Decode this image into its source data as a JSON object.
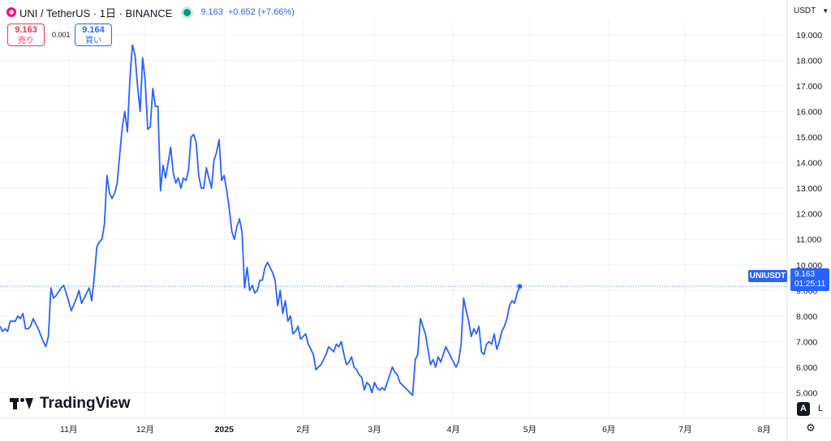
{
  "header": {
    "symbol": "UNI / TetherUS · 1日 · BINANCE",
    "last": "9.163",
    "change": "+0.652 (+7.66%)"
  },
  "trade": {
    "sell_price": "9.163",
    "sell_label": "売り",
    "spread": "0.001",
    "buy_price": "9.164",
    "buy_label": "買い"
  },
  "price_axis_unit": "USDT",
  "price_tag": {
    "symbol": "UNIUSDT",
    "price": "9.163",
    "countdown": "01:25:11"
  },
  "logo_text": "TradingView",
  "scale_buttons": {
    "auto": "A",
    "log": "L"
  },
  "colors": {
    "line": "#2962ff",
    "grid": "#f0f3fa",
    "up": "#089981",
    "down": "#f23645"
  },
  "chart_data": {
    "type": "line",
    "x_unit": "days since 2024-10-05",
    "ylim": [
      4.0,
      19.6
    ],
    "yticks": [
      "5.000",
      "6.000",
      "7.000",
      "8.000",
      "9.000",
      "10.000",
      "11.000",
      "12.000",
      "13.000",
      "14.000",
      "15.000",
      "16.000",
      "17.000",
      "18.000",
      "19.000"
    ],
    "ytick_values": [
      5,
      6,
      7,
      8,
      9,
      10,
      11,
      12,
      13,
      14,
      15,
      16,
      17,
      18,
      19
    ],
    "xticks": [
      {
        "label": "11月",
        "day": 27
      },
      {
        "label": "12月",
        "day": 57
      },
      {
        "label": "2025",
        "day": 88
      },
      {
        "label": "2月",
        "day": 119
      },
      {
        "label": "3月",
        "day": 147
      },
      {
        "label": "4月",
        "day": 178
      },
      {
        "label": "5月",
        "day": 208
      },
      {
        "label": "6月",
        "day": 239
      },
      {
        "label": "7月",
        "day": 269
      },
      {
        "label": "8月",
        "day": 300
      }
    ],
    "xlim": [
      0,
      309
    ],
    "grid": true,
    "current_price": 9.163,
    "series": [
      {
        "values": [
          [
            0,
            7.6
          ],
          [
            1,
            7.4
          ],
          [
            2,
            7.5
          ],
          [
            3,
            7.4
          ],
          [
            4,
            7.8
          ],
          [
            6,
            7.8
          ],
          [
            7,
            8.0
          ],
          [
            8,
            7.9
          ],
          [
            9,
            8.1
          ],
          [
            10,
            7.5
          ],
          [
            11,
            7.5
          ],
          [
            12,
            7.6
          ],
          [
            13,
            7.9
          ],
          [
            14,
            7.7
          ],
          [
            15,
            7.5
          ],
          [
            17,
            7.0
          ],
          [
            18,
            6.8
          ],
          [
            19,
            7.2
          ],
          [
            20,
            9.1
          ],
          [
            21,
            8.7
          ],
          [
            22,
            8.8
          ],
          [
            24,
            9.1
          ],
          [
            25,
            9.2
          ],
          [
            26,
            8.9
          ],
          [
            28,
            8.2
          ],
          [
            30,
            8.7
          ],
          [
            31,
            9.0
          ],
          [
            32,
            8.5
          ],
          [
            33,
            8.7
          ],
          [
            35,
            9.1
          ],
          [
            36,
            8.6
          ],
          [
            37,
            9.5
          ],
          [
            38,
            10.7
          ],
          [
            39,
            10.9
          ],
          [
            40,
            11.0
          ],
          [
            41,
            11.6
          ],
          [
            42,
            13.5
          ],
          [
            43,
            12.8
          ],
          [
            44,
            12.6
          ],
          [
            45,
            12.8
          ],
          [
            46,
            13.2
          ],
          [
            47,
            14.3
          ],
          [
            48,
            15.4
          ],
          [
            49,
            16.0
          ],
          [
            50,
            15.2
          ],
          [
            51,
            17.3
          ],
          [
            52,
            18.6
          ],
          [
            53,
            18.2
          ],
          [
            54,
            17.0
          ],
          [
            55,
            16.0
          ],
          [
            56,
            18.1
          ],
          [
            57,
            17.2
          ],
          [
            58,
            15.3
          ],
          [
            59,
            15.4
          ],
          [
            60,
            16.9
          ],
          [
            61,
            16.2
          ],
          [
            62,
            16.2
          ],
          [
            63,
            12.9
          ],
          [
            64,
            13.9
          ],
          [
            65,
            13.4
          ],
          [
            66,
            14.0
          ],
          [
            67,
            14.6
          ],
          [
            68,
            13.6
          ],
          [
            69,
            13.2
          ],
          [
            70,
            13.4
          ],
          [
            71,
            13.0
          ],
          [
            72,
            13.4
          ],
          [
            73,
            13.3
          ],
          [
            74,
            13.7
          ],
          [
            75,
            15.0
          ],
          [
            76,
            15.1
          ],
          [
            77,
            14.8
          ],
          [
            78,
            13.5
          ],
          [
            79,
            13.0
          ],
          [
            80,
            13.0
          ],
          [
            81,
            13.8
          ],
          [
            82,
            13.4
          ],
          [
            83,
            13.0
          ],
          [
            84,
            14.1
          ],
          [
            85,
            14.4
          ],
          [
            86,
            14.9
          ],
          [
            87,
            13.3
          ],
          [
            88,
            13.5
          ],
          [
            89,
            12.9
          ],
          [
            90,
            12.2
          ],
          [
            91,
            11.3
          ],
          [
            92,
            11.0
          ],
          [
            93,
            11.5
          ],
          [
            94,
            11.8
          ],
          [
            95,
            11.3
          ],
          [
            96,
            9.1
          ],
          [
            97,
            9.9
          ],
          [
            98,
            9.0
          ],
          [
            99,
            9.2
          ],
          [
            100,
            8.9
          ],
          [
            101,
            9.0
          ],
          [
            102,
            9.4
          ],
          [
            103,
            9.4
          ],
          [
            104,
            9.9
          ],
          [
            105,
            10.1
          ],
          [
            106,
            9.9
          ],
          [
            107,
            9.7
          ],
          [
            108,
            9.4
          ],
          [
            109,
            8.4
          ],
          [
            110,
            9.0
          ],
          [
            111,
            8.1
          ],
          [
            112,
            8.6
          ],
          [
            113,
            7.8
          ],
          [
            114,
            8.0
          ],
          [
            115,
            7.3
          ],
          [
            116,
            7.4
          ],
          [
            117,
            7.6
          ],
          [
            118,
            7.1
          ],
          [
            119,
            7.2
          ],
          [
            120,
            7.3
          ],
          [
            121,
            6.9
          ],
          [
            122,
            6.7
          ],
          [
            123,
            6.5
          ],
          [
            124,
            5.9
          ],
          [
            125,
            6.0
          ],
          [
            126,
            6.1
          ],
          [
            127,
            6.3
          ],
          [
            128,
            6.5
          ],
          [
            129,
            6.8
          ],
          [
            130,
            6.7
          ],
          [
            131,
            6.6
          ],
          [
            132,
            6.9
          ],
          [
            133,
            6.8
          ],
          [
            134,
            7.0
          ],
          [
            135,
            6.5
          ],
          [
            136,
            6.1
          ],
          [
            137,
            6.2
          ],
          [
            138,
            6.4
          ],
          [
            139,
            6.0
          ],
          [
            140,
            5.9
          ],
          [
            141,
            5.7
          ],
          [
            142,
            5.6
          ],
          [
            143,
            5.1
          ],
          [
            144,
            5.4
          ],
          [
            145,
            5.3
          ],
          [
            146,
            5.0
          ],
          [
            147,
            5.4
          ],
          [
            148,
            5.2
          ],
          [
            149,
            5.1
          ],
          [
            150,
            5.2
          ],
          [
            151,
            5.1
          ],
          [
            152,
            5.4
          ],
          [
            153,
            5.7
          ],
          [
            154,
            6.0
          ],
          [
            155,
            5.8
          ],
          [
            156,
            5.7
          ],
          [
            157,
            5.4
          ],
          [
            158,
            5.3
          ],
          [
            159,
            5.2
          ],
          [
            160,
            5.1
          ],
          [
            161,
            5.0
          ],
          [
            162,
            4.9
          ],
          [
            163,
            6.3
          ],
          [
            164,
            6.5
          ],
          [
            165,
            7.9
          ],
          [
            166,
            7.6
          ],
          [
            167,
            7.3
          ],
          [
            168,
            6.7
          ],
          [
            169,
            6.1
          ],
          [
            170,
            6.3
          ],
          [
            171,
            6.0
          ],
          [
            172,
            6.4
          ],
          [
            173,
            6.2
          ],
          [
            174,
            6.5
          ],
          [
            175,
            6.8
          ],
          [
            176,
            6.6
          ],
          [
            177,
            6.4
          ],
          [
            178,
            6.2
          ],
          [
            179,
            6.0
          ],
          [
            180,
            6.2
          ],
          [
            181,
            6.9
          ],
          [
            182,
            8.7
          ],
          [
            183,
            8.2
          ],
          [
            184,
            7.8
          ],
          [
            185,
            7.2
          ],
          [
            186,
            7.5
          ],
          [
            187,
            7.3
          ],
          [
            188,
            7.6
          ],
          [
            189,
            6.6
          ],
          [
            190,
            6.5
          ],
          [
            191,
            6.9
          ],
          [
            192,
            7.0
          ],
          [
            193,
            6.9
          ],
          [
            194,
            7.3
          ],
          [
            195,
            6.7
          ],
          [
            196,
            7.0
          ],
          [
            197,
            7.4
          ],
          [
            198,
            7.6
          ],
          [
            199,
            7.9
          ],
          [
            200,
            8.4
          ],
          [
            201,
            8.6
          ],
          [
            202,
            8.5
          ],
          [
            203,
            8.9
          ],
          [
            204,
            9.16
          ]
        ]
      }
    ]
  }
}
